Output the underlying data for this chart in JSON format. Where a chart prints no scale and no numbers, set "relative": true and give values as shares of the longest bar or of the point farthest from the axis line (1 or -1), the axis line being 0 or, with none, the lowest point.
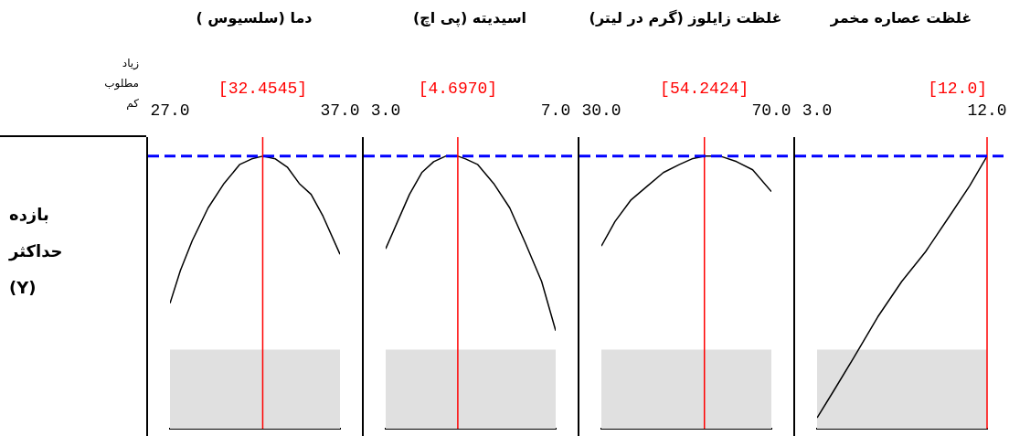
{
  "chart_data": [
    {
      "type": "line",
      "title": "دما (سلسیوس )",
      "ylabel": "بازده حداکثر (Y)",
      "annotations": [
        "زیاد",
        "مطلوب",
        "کم"
      ],
      "relative": true,
      "xlim": [
        27,
        37
      ],
      "xticks": [
        {
          "value": 27,
          "label": "27.0"
        },
        {
          "value": 37,
          "label": "37.0"
        }
      ],
      "color": "#000000",
      "x": [
        27,
        27.61,
        28.31,
        29.24,
        30.18,
        31.11,
        31.81,
        32.45,
        33.2,
        33.9,
        34.6,
        35.3,
        36.0,
        37
      ],
      "values": [
        0.46,
        0.58,
        0.69,
        0.81,
        0.9,
        0.97,
        0.99,
        1.0,
        0.99,
        0.96,
        0.9,
        0.86,
        0.78,
        0.64
      ],
      "ref_lines": [
        {
          "axis": "x",
          "value": 32.4545,
          "label": "[32.4545]",
          "color": "#ff0000"
        },
        {
          "axis": "y",
          "value": 1,
          "color": "#0000ff",
          "line_style": "dashed"
        }
      ],
      "bands": [
        {
          "axis": "y",
          "from": 0,
          "to": 0.29,
          "color": "#e0e0e0"
        }
      ]
    },
    {
      "type": "line",
      "title": "اسیدیته (پی اچ)",
      "relative": true,
      "xlim": [
        3,
        7
      ],
      "xticks": [
        {
          "value": 3,
          "label": "3.0"
        },
        {
          "value": 7,
          "label": "7.0"
        }
      ],
      "color": "#000000",
      "x": [
        3,
        3.28,
        3.56,
        3.85,
        4.13,
        4.41,
        4.7,
        4.88,
        5.16,
        5.54,
        5.92,
        6.29,
        6.67,
        7
      ],
      "values": [
        0.66,
        0.76,
        0.86,
        0.94,
        0.98,
        1.0,
        1.0,
        0.99,
        0.97,
        0.9,
        0.81,
        0.68,
        0.54,
        0.36
      ],
      "ref_lines": [
        {
          "axis": "x",
          "value": 4.697,
          "label": "[4.6970]",
          "color": "#ff0000"
        },
        {
          "axis": "y",
          "value": 1,
          "color": "#0000ff",
          "line_style": "dashed"
        }
      ],
      "bands": [
        {
          "axis": "y",
          "from": 0,
          "to": 0.29,
          "color": "#e0e0e0"
        }
      ]
    },
    {
      "type": "line",
      "title": "غلظت زایلوز (گرم در لیتر)",
      "relative": true,
      "xlim": [
        30,
        70
      ],
      "xticks": [
        {
          "value": 30,
          "label": "30.0"
        },
        {
          "value": 70,
          "label": "70.0"
        }
      ],
      "color": "#000000",
      "x": [
        30,
        33.2,
        37.0,
        40.8,
        44.6,
        48.4,
        51.3,
        54.24,
        58.0,
        61.8,
        65.6,
        70
      ],
      "values": [
        0.67,
        0.76,
        0.84,
        0.89,
        0.94,
        0.97,
        0.99,
        1.0,
        1.0,
        0.98,
        0.95,
        0.87
      ],
      "ref_lines": [
        {
          "axis": "x",
          "value": 54.2424,
          "label": "[54.2424]",
          "color": "#ff0000"
        },
        {
          "axis": "y",
          "value": 1,
          "color": "#0000ff",
          "line_style": "dashed"
        }
      ],
      "bands": [
        {
          "axis": "y",
          "from": 0,
          "to": 0.29,
          "color": "#e0e0e0"
        }
      ]
    },
    {
      "type": "line",
      "title": "غلظت عصاره مخمر",
      "relative": true,
      "xlim": [
        3,
        12
      ],
      "xticks": [
        {
          "value": 3,
          "label": "3.0"
        },
        {
          "value": 12,
          "label": "12.0"
        }
      ],
      "color": "#000000",
      "x": [
        3,
        3.89,
        4.94,
        6.21,
        7.48,
        8.75,
        10.01,
        11.07,
        12
      ],
      "values": [
        0.04,
        0.14,
        0.26,
        0.41,
        0.54,
        0.65,
        0.78,
        0.89,
        1.0
      ],
      "ref_lines": [
        {
          "axis": "x",
          "value": 12,
          "label": "[12.0]",
          "color": "#ff0000"
        },
        {
          "axis": "y",
          "value": 1,
          "color": "#0000ff",
          "line_style": "dashed"
        }
      ],
      "bands": [
        {
          "axis": "y",
          "from": 0,
          "to": 0.29,
          "color": "#e0e0e0"
        }
      ]
    }
  ]
}
